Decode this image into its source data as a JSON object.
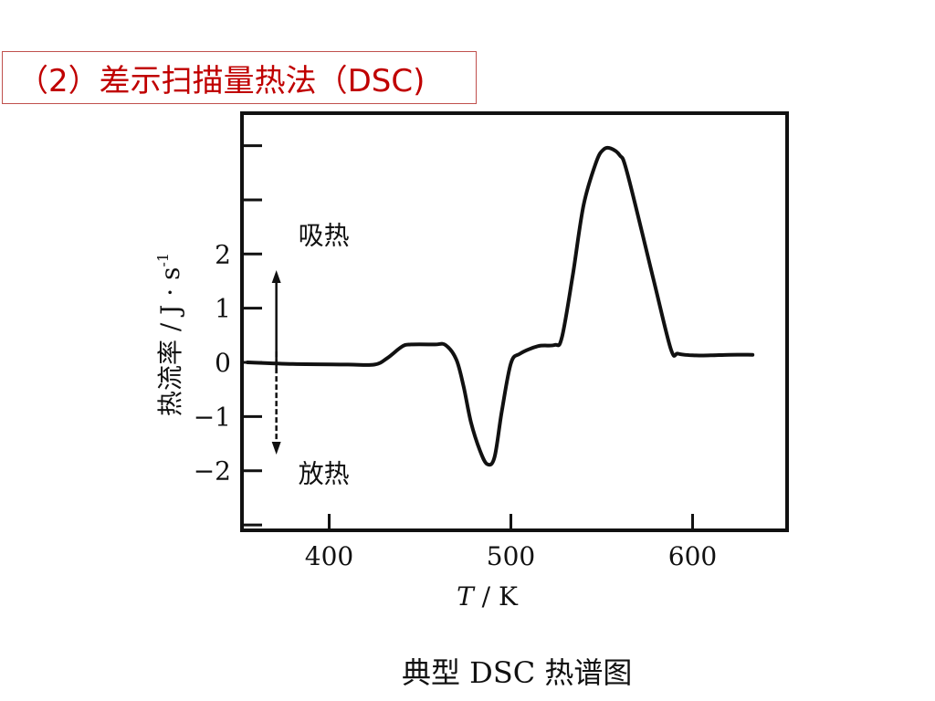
{
  "slide": {
    "title": "（2）差示扫描量热法（DSC)",
    "caption": "典型 DSC 热谱图"
  },
  "chart_data": {
    "type": "line",
    "title": "",
    "xlabel": "T / K",
    "ylabel": "热流率 / J · s",
    "ylabel_superscript": "-1",
    "xlim": [
      352,
      652
    ],
    "ylim": [
      -3.1,
      4.6
    ],
    "xticks": [
      400,
      500,
      600
    ],
    "xtick_labels": [
      "400",
      "500",
      "600"
    ],
    "yticks": [
      2,
      1,
      0,
      -1,
      -2
    ],
    "ytick_labels": [
      "2",
      "1",
      "0",
      "−1",
      "−2"
    ],
    "grid": false,
    "legend": "none",
    "line_color": "#111111",
    "annotations": [
      {
        "text": "吸热",
        "direction": "up",
        "x": 385,
        "y_from": -0.2,
        "y_to": 1.6,
        "label_y": 2.35
      },
      {
        "text": "放热",
        "direction": "down",
        "x": 385,
        "y_from": 0.2,
        "y_to": -1.6,
        "label_y": -2.05
      }
    ],
    "series": [
      {
        "x": [
          355,
          380,
          410,
          425,
          432,
          440,
          445,
          458,
          464,
          470,
          474,
          478,
          483,
          487,
          491,
          495,
          500,
          505,
          515,
          524,
          528,
          534,
          540,
          547,
          551,
          555,
          560,
          564,
          578,
          588,
          592,
          600,
          610,
          620,
          633
        ],
        "y": [
          0.0,
          -0.03,
          -0.04,
          -0.04,
          0.08,
          0.29,
          0.33,
          0.33,
          0.32,
          0.05,
          -0.45,
          -1.1,
          -1.63,
          -1.88,
          -1.75,
          -0.9,
          -0.02,
          0.16,
          0.3,
          0.32,
          0.45,
          1.6,
          2.9,
          3.7,
          3.93,
          3.95,
          3.82,
          3.5,
          1.6,
          0.25,
          0.16,
          0.13,
          0.13,
          0.14,
          0.14
        ]
      }
    ]
  }
}
